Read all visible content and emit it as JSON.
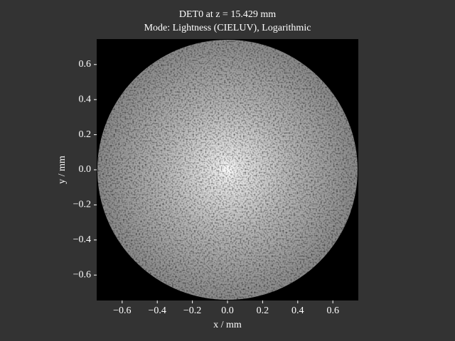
{
  "chart_data": {
    "type": "image",
    "title": "DET0 at z = 15.429 mm",
    "subtitle": "Mode: Lightness (CIELUV), Logarithmic",
    "x_label": "x / mm",
    "y_label": "y / mm",
    "xlim": [
      -0.745,
      0.745
    ],
    "ylim": [
      -0.745,
      0.745
    ],
    "xticks": [
      {
        "value": -0.6,
        "label": "−0.6"
      },
      {
        "value": -0.4,
        "label": "−0.4"
      },
      {
        "value": -0.2,
        "label": "−0.2"
      },
      {
        "value": 0,
        "label": "0.0"
      },
      0.2,
      0.4,
      0.6
    ],
    "yticks": [
      {
        "value": -0.6,
        "label": "−0.6"
      },
      {
        "value": -0.4,
        "label": "−0.4"
      },
      {
        "value": -0.2,
        "label": "−0.2"
      },
      {
        "value": 0,
        "label": "0.0"
      },
      0.2,
      0.4,
      0.6
    ]
  }
}
